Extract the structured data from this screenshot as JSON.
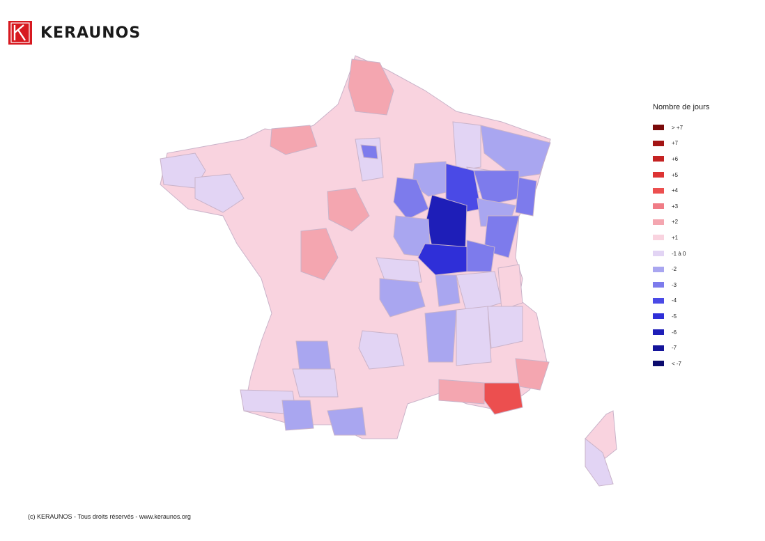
{
  "brand": {
    "name": "KERAUNOS",
    "accent": "#d71920"
  },
  "legend": {
    "title": "Nombre de jours",
    "items": [
      {
        "label": "> +7",
        "color": "#7a0a0a"
      },
      {
        "label": "+7",
        "color": "#a31414"
      },
      {
        "label": "+6",
        "color": "#c42222"
      },
      {
        "label": "+5",
        "color": "#dd3333"
      },
      {
        "label": "+4",
        "color": "#ec4f4f"
      },
      {
        "label": "+3",
        "color": "#f07c86"
      },
      {
        "label": "+2",
        "color": "#f4a6b0"
      },
      {
        "label": "+1",
        "color": "#f9d3df"
      },
      {
        "label": "-1 à 0",
        "color": "#e2d4f4"
      },
      {
        "label": "-2",
        "color": "#a9a6f0"
      },
      {
        "label": "-3",
        "color": "#7d7bec"
      },
      {
        "label": "-4",
        "color": "#4a4ae6"
      },
      {
        "label": "-5",
        "color": "#2f2fd8"
      },
      {
        "label": "-6",
        "color": "#1e1eb8"
      },
      {
        "label": "-7",
        "color": "#14149a"
      },
      {
        "label": "< -7",
        "color": "#0b0b6e"
      }
    ]
  },
  "footer": {
    "copyright": "(c) KERAUNOS - Tous droits réservés - www.keraunos.org"
  }
}
